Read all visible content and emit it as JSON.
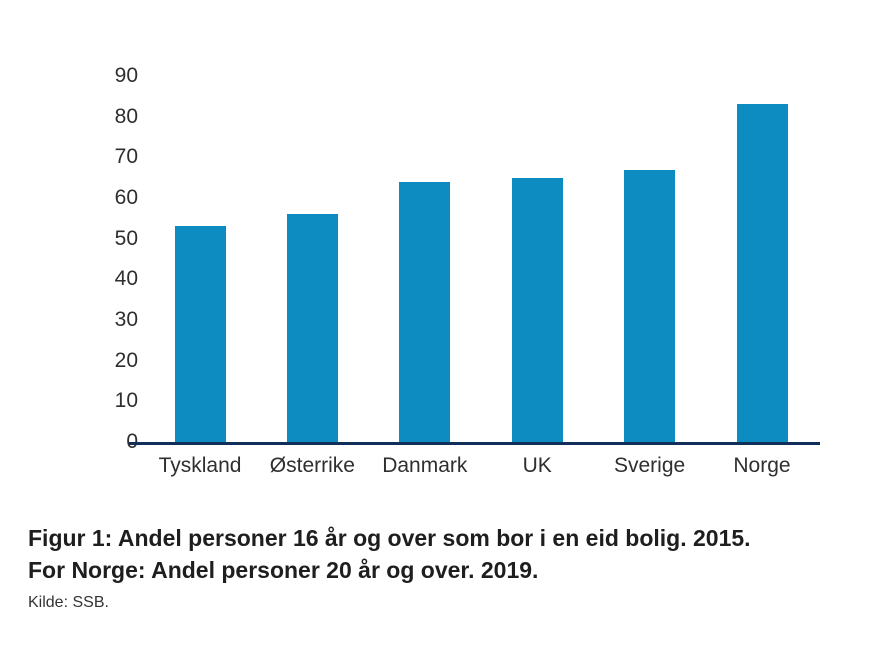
{
  "chart_data": {
    "type": "bar",
    "categories": [
      "Tyskland",
      "Østerrike",
      "Danmark",
      "UK",
      "Sverige",
      "Norge"
    ],
    "values": [
      53,
      56,
      64,
      65,
      67,
      83
    ],
    "title": "Figur 1: Andel personer 16 år og over som bor i en eid bolig. 2015. For Norge: Andel personer 20 år og over. 2019.",
    "xlabel": "",
    "ylabel": "",
    "ylim": [
      0,
      90
    ],
    "yticks": [
      0,
      10,
      20,
      30,
      40,
      50,
      60,
      70,
      80,
      90
    ],
    "grid": false,
    "legend_position": "none",
    "bar_color": "#0d8cc2",
    "axis_color": "#10305a",
    "source": "Kilde: SSB."
  },
  "caption": {
    "line1": "Figur 1: Andel personer 16 år og over som bor i en eid bolig. 2015.",
    "line2": "For Norge: Andel personer 20 år og over. 2019.",
    "source": "Kilde: SSB."
  }
}
